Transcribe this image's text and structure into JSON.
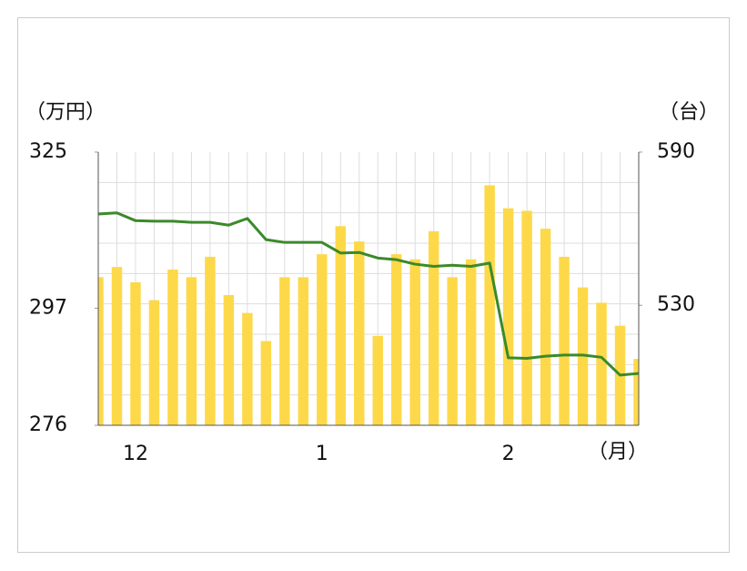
{
  "chart_data": {
    "type": "bar-line",
    "y_label": "（万円）",
    "y2_label": "（台）",
    "x_label": "（月）",
    "categories": [
      null,
      null,
      "12",
      null,
      null,
      null,
      null,
      null,
      null,
      null,
      null,
      null,
      "1",
      null,
      null,
      null,
      null,
      null,
      null,
      null,
      null,
      null,
      "2",
      null,
      null,
      null,
      null,
      null,
      null,
      null
    ],
    "series": [
      {
        "type": "bar",
        "axis": "y2",
        "color": "#fdd94a",
        "values": [
          541,
          545,
          539,
          532,
          544,
          541,
          549,
          534,
          527,
          516,
          541,
          541,
          550,
          561,
          555,
          518,
          550,
          548,
          559,
          541,
          548,
          577,
          568,
          567,
          560,
          549,
          537,
          531,
          522,
          509
        ]
      },
      {
        "type": "line",
        "color": "#3a8a2a",
        "values": [
          313.9,
          314.1,
          312.7,
          312.6,
          312.6,
          312.4,
          312.4,
          311.9,
          313.1,
          309.3,
          308.8,
          308.8,
          308.8,
          306.9,
          307.0,
          306.0,
          305.7,
          304.9,
          304.5,
          304.7,
          304.5,
          305.1,
          288.1,
          288.0,
          288.4,
          288.6,
          288.6,
          288.2,
          285.0,
          285.3
        ]
      }
    ],
    "ylim": [
      276,
      325
    ],
    "yticks": [
      276,
      297,
      325
    ],
    "y2lim": [
      483,
      590
    ],
    "y2ticks": [
      530,
      590
    ]
  }
}
